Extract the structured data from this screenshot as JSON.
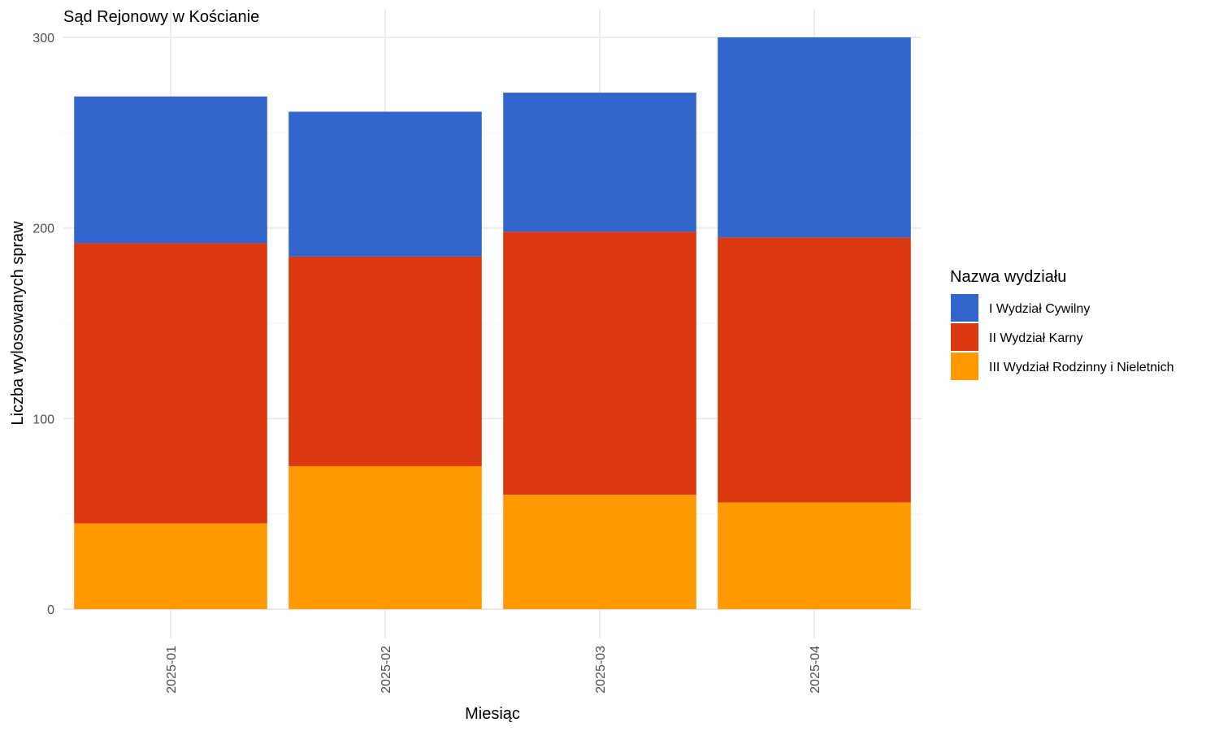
{
  "chart_data": {
    "type": "bar",
    "stacked": true,
    "title": "Sąd Rejonowy w Kościanie",
    "xlabel": "Miesiąc",
    "ylabel": "Liczba wylosowanych spraw",
    "ylim": [
      0,
      300
    ],
    "yticks": [
      0,
      100,
      200,
      300
    ],
    "grid": true,
    "legend_position": "right",
    "legend_title": "Nazwa wydziału",
    "categories": [
      "2025-01",
      "2025-02",
      "2025-03",
      "2025-04"
    ],
    "series": [
      {
        "name": "III Wydział Rodzinny i Nieletnich",
        "color": "#FF9900",
        "values": [
          45,
          75,
          60,
          56
        ]
      },
      {
        "name": "II Wydział Karny",
        "color": "#DC3912",
        "values": [
          147,
          110,
          138,
          139
        ]
      },
      {
        "name": "I Wydział Cywilny",
        "color": "#3366CC",
        "values": [
          77,
          76,
          73,
          105
        ]
      }
    ],
    "legend_order": [
      "I Wydział Cywilny",
      "II Wydział Karny",
      "III Wydział Rodzinny i Nieletnich"
    ]
  }
}
